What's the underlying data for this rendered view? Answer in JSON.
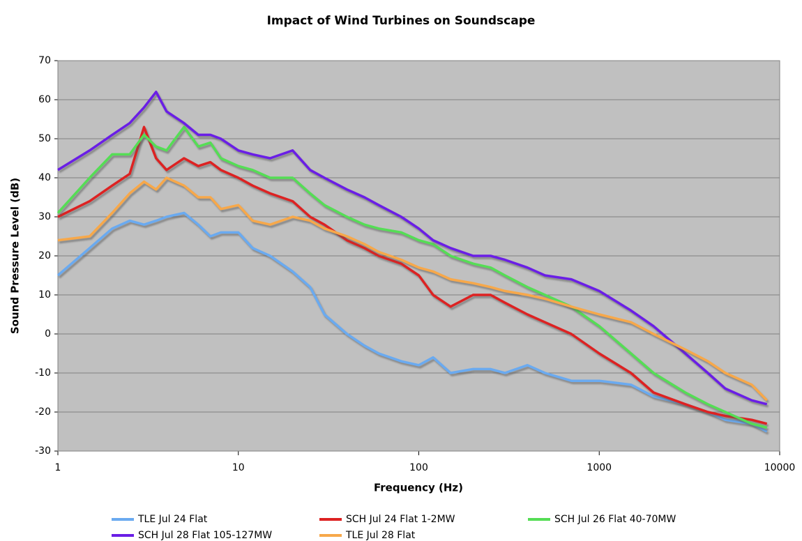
{
  "chart_data": {
    "type": "line",
    "title": "Impact of Wind Turbines on Soundscape",
    "x_label": "Frequency (Hz)",
    "y_label": "Sound Pressure Level (dB)",
    "xscale": "log",
    "xlim": [
      1,
      10000
    ],
    "xticks": [
      1,
      10,
      100,
      1000,
      10000
    ],
    "ylim": [
      -30,
      70
    ],
    "yticks": [
      -30,
      -20,
      -10,
      0,
      10,
      20,
      30,
      40,
      50,
      60,
      70
    ],
    "grid": true,
    "legend": "bottom",
    "x": [
      1,
      1.5,
      2,
      2.5,
      3,
      3.5,
      4,
      5,
      6,
      7,
      8,
      10,
      12,
      15,
      20,
      25,
      30,
      40,
      50,
      60,
      80,
      100,
      120,
      150,
      200,
      250,
      300,
      400,
      500,
      700,
      1000,
      1500,
      2000,
      3000,
      4000,
      5000,
      7000,
      8500
    ],
    "series": [
      {
        "name": "TLE Jul 24 Flat",
        "color": "#6aaaf0",
        "values": [
          15,
          22,
          27,
          29,
          28,
          29,
          30,
          31,
          28,
          25,
          26,
          26,
          22,
          20,
          16,
          12,
          5,
          0,
          -3,
          -5,
          -7,
          -8,
          -6,
          -10,
          -9,
          -9,
          -10,
          -8,
          -10,
          -12,
          -12,
          -13,
          -16,
          -18,
          -20,
          -22,
          -23,
          -25
        ]
      },
      {
        "name": "SCH Jul 24 Flat 1-2MW",
        "color": "#dd2222",
        "values": [
          30,
          34,
          38,
          41,
          53,
          45,
          42,
          45,
          43,
          44,
          42,
          40,
          38,
          36,
          34,
          30,
          28,
          24,
          22,
          20,
          18,
          15,
          10,
          7,
          10,
          10,
          8,
          5,
          3,
          0,
          -5,
          -10,
          -15,
          -18,
          -20,
          -21,
          -22,
          -23
        ]
      },
      {
        "name": "SCH Jul 26 Flat 40-70MW",
        "color": "#55dd55",
        "values": [
          31,
          40,
          46,
          46,
          51,
          48,
          47,
          53,
          48,
          49,
          45,
          43,
          42,
          40,
          40,
          36,
          33,
          30,
          28,
          27,
          26,
          24,
          23,
          20,
          18,
          17,
          15,
          12,
          10,
          7,
          2,
          -5,
          -10,
          -15,
          -18,
          -20,
          -23,
          -24
        ]
      },
      {
        "name": "SCH Jul 28 Flat 105-127MW",
        "color": "#6a1ee6",
        "values": [
          42,
          47,
          51,
          54,
          58,
          62,
          57,
          54,
          51,
          51,
          50,
          47,
          46,
          45,
          47,
          42,
          40,
          37,
          35,
          33,
          30,
          27,
          24,
          22,
          20,
          20,
          19,
          17,
          15,
          14,
          11,
          6,
          2,
          -5,
          -10,
          -14,
          -17,
          -18
        ]
      },
      {
        "name": "TLE Jul 28 Flat",
        "color": "#f7a84a",
        "values": [
          24,
          25,
          31,
          36,
          39,
          37,
          40,
          38,
          35,
          35,
          32,
          33,
          29,
          28,
          30,
          29,
          27,
          25,
          23,
          21,
          19,
          17,
          16,
          14,
          13,
          12,
          11,
          10,
          9,
          7,
          5,
          3,
          0,
          -4,
          -7,
          -10,
          -13,
          -17
        ]
      }
    ]
  }
}
